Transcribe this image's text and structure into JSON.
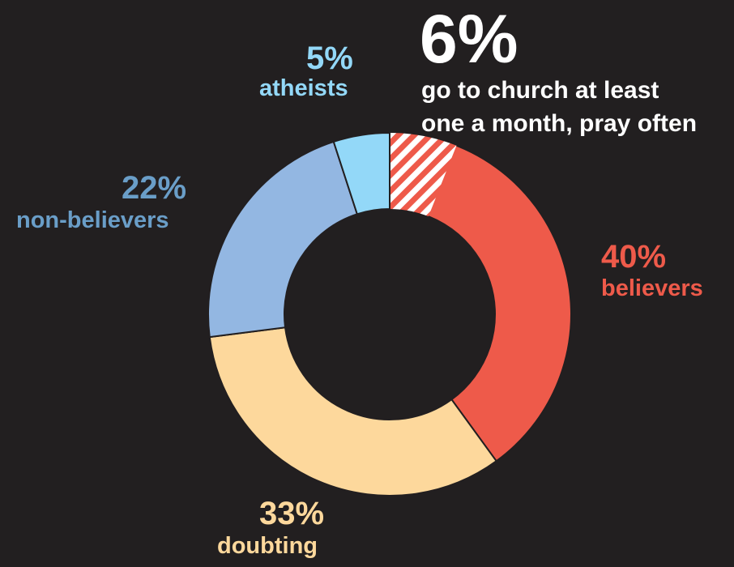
{
  "chart_data": {
    "type": "pie",
    "donut": true,
    "slices": [
      {
        "pct_label": "40%",
        "category": "believers",
        "value": 40,
        "color": "#ee5a4a"
      },
      {
        "pct_label": "33%",
        "category": "doubting",
        "value": 33,
        "color": "#fdd89c"
      },
      {
        "pct_label": "22%",
        "category": "non-believers",
        "value": 22,
        "color": "#93b7e2"
      },
      {
        "pct_label": "5%",
        "category": "atheists",
        "value": 5,
        "color": "#93d8f8"
      }
    ],
    "highlight": {
      "value": 6,
      "pct_label": "6%",
      "text_line1": "go to church at least",
      "text_line2": "one a month, pray often",
      "pattern": "hatched",
      "of_category": "believers"
    },
    "label_colors": {
      "believers": "#ee5a4a",
      "doubting": "#fdd89c",
      "non-believers": "#6a9ec8",
      "atheists": "#93d8f8",
      "highlight": "#ffffff"
    },
    "background": "#221f20"
  }
}
